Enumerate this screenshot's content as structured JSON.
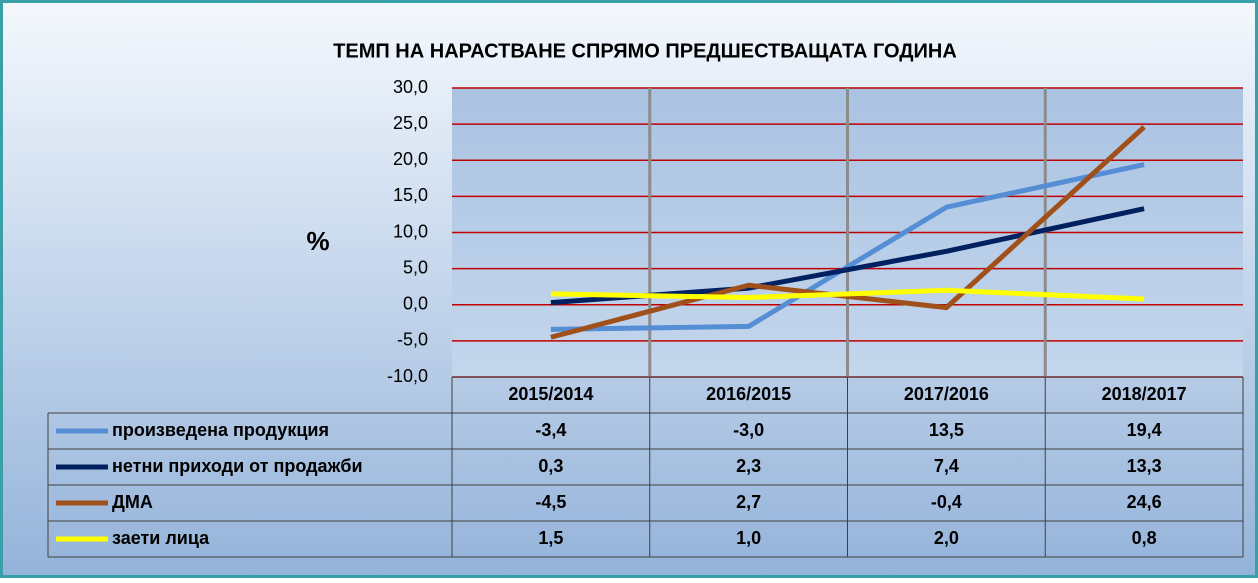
{
  "chart_data": {
    "type": "line",
    "title": "ТЕМП НА НАРАСТВАНЕ СПРЯМО ПРЕДШЕСТВАЩАТА ГОДИНА",
    "y_label": "%",
    "categories": [
      "2015/2014",
      "2016/2015",
      "2017/2016",
      "2018/2017"
    ],
    "series": [
      {
        "name": "произведена продукция",
        "color": "#558ed5",
        "values": [
          -3.4,
          -3.0,
          13.5,
          19.4
        ],
        "value_labels": [
          "-3,4",
          "-3,0",
          "13,5",
          "19,4"
        ]
      },
      {
        "name": "нетни приходи от продажби",
        "color": "#002060",
        "values": [
          0.3,
          2.3,
          7.4,
          13.3
        ],
        "value_labels": [
          "0,3",
          "2,3",
          "7,4",
          "13,3"
        ]
      },
      {
        "name": "ДМА",
        "color": "#a0501a",
        "values": [
          -4.5,
          2.7,
          -0.4,
          24.6
        ],
        "value_labels": [
          "-4,5",
          "2,7",
          "-0,4",
          "24,6"
        ]
      },
      {
        "name": "заети лица",
        "color": "#ffff00",
        "values": [
          1.5,
          1.0,
          2.0,
          0.8
        ],
        "value_labels": [
          "1,5",
          "1,0",
          "2,0",
          "0,8"
        ]
      }
    ],
    "ylim": [
      -10,
      30
    ],
    "yticks": [
      {
        "value": -10,
        "label": "-10,0"
      },
      {
        "value": -5,
        "label": "-5,0"
      },
      {
        "value": 0,
        "label": "0,0"
      },
      {
        "value": 5,
        "label": "5,0"
      },
      {
        "value": 10,
        "label": "10,0"
      },
      {
        "value": 15,
        "label": "15,0"
      },
      {
        "value": 20,
        "label": "20,0"
      },
      {
        "value": 25,
        "label": "25,0"
      },
      {
        "value": 30,
        "label": "30,0"
      }
    ],
    "grid": true,
    "grid_color": "#c00000"
  }
}
